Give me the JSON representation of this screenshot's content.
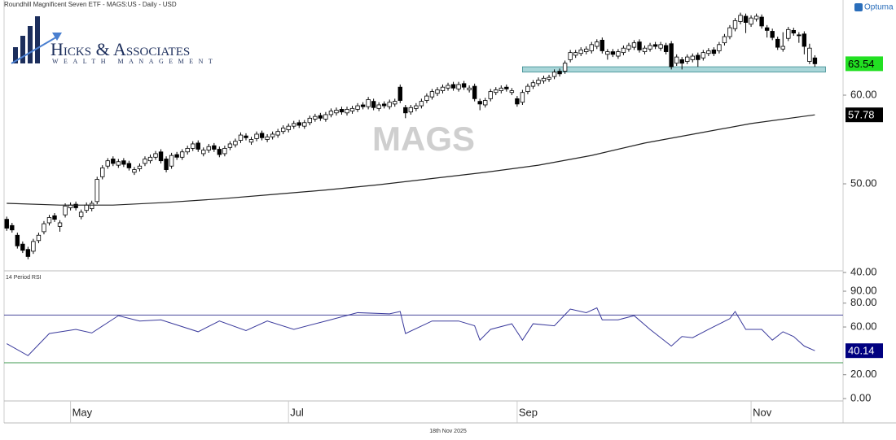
{
  "brand": "Optuma",
  "footer": "18th Nov 2025",
  "logo": {
    "name": "Hicks & Associates",
    "tagline": "WEALTH MANAGEMENT"
  },
  "chart_data": [
    {
      "type": "candlestick",
      "title": "Roundhill Magnificent Seven ETF - MAGS:US - Daily - USD",
      "watermark": "MAGS",
      "xlim": [
        -0.5,
        157.3
      ],
      "ylim": [
        40.28,
        70.73
      ],
      "yticks": [
        {
          "value": 40,
          "label": "40.00"
        },
        {
          "value": 50,
          "label": "50.00"
        },
        {
          "value": 60,
          "label": "60.00"
        }
      ],
      "up_color": "#ffffff",
      "down_color": "#000000",
      "close_label_color": "#22e022",
      "open": [
        46.0,
        45.3,
        44.2,
        43.2,
        42.6,
        42.4,
        43.6,
        44.6,
        45.6,
        46.4,
        45.2,
        46.5,
        47.3,
        47.7,
        46.3,
        47.0,
        47.2,
        48.0,
        50.8,
        52.0,
        52.8,
        52.1,
        52.6,
        52.3,
        51.3,
        51.7,
        52.3,
        52.6,
        53.0,
        53.6,
        52.8,
        52.0,
        53.3,
        53.0,
        53.6,
        54.0,
        54.6,
        53.4,
        53.8,
        54.3,
        53.9,
        53.4,
        54.1,
        54.4,
        54.9,
        55.4,
        54.7,
        55.1,
        55.7,
        55.0,
        55.3,
        55.5,
        55.9,
        56.1,
        56.5,
        56.9,
        56.5,
        56.9,
        57.3,
        57.7,
        57.3,
        57.8,
        58.0,
        58.4,
        58.0,
        58.2,
        58.4,
        58.9,
        58.7,
        59.3,
        58.5,
        59.0,
        58.7,
        59.0,
        60.9,
        58.6,
        58.1,
        58.5,
        58.8,
        59.4,
        59.8,
        60.2,
        60.5,
        60.8,
        61.2,
        60.7,
        61.3,
        60.6,
        61.0,
        59.3,
        58.9,
        59.6,
        60.3,
        60.5,
        60.9,
        60.3,
        59.6,
        59.2,
        60.4,
        61.0,
        61.3,
        61.6,
        61.8,
        62.1,
        62.7,
        62.7,
        64.0,
        64.5,
        64.7,
        64.9,
        65.0,
        65.5,
        66.2,
        64.6,
        64.9,
        64.4,
        64.8,
        65.2,
        65.4,
        66.0,
        64.9,
        65.2,
        65.7,
        65.3,
        65.6,
        65.8,
        63.6,
        64.0,
        63.8,
        64.0,
        64.5,
        64.2,
        64.7,
        65.1,
        65.0,
        65.9,
        66.6,
        67.5,
        68.3,
        68.9,
        68.0,
        68.6,
        68.8,
        67.6,
        67.2,
        66.3,
        65.2,
        66.4,
        67.3,
        66.8,
        66.9,
        63.8,
        64.2
      ],
      "high": [
        46.3,
        45.6,
        44.5,
        43.5,
        42.9,
        43.8,
        44.5,
        45.8,
        46.5,
        46.7,
        45.9,
        47.8,
        47.9,
        48.0,
        47.1,
        47.9,
        48.1,
        50.8,
        52.1,
        52.9,
        53.1,
        52.8,
        52.9,
        52.6,
        51.9,
        52.3,
        53.1,
        53.3,
        53.7,
        53.9,
        53.1,
        53.5,
        53.6,
        53.9,
        54.3,
        54.8,
        54.9,
        54.1,
        54.5,
        54.6,
        54.2,
        54.3,
        54.8,
        55.1,
        55.8,
        55.7,
        55.3,
        55.9,
        56.0,
        55.6,
        55.9,
        56.2,
        56.6,
        56.8,
        57.1,
        57.2,
        57.2,
        57.7,
        57.9,
        58.0,
        58.1,
        58.5,
        58.6,
        58.7,
        58.7,
        58.8,
        59.1,
        59.2,
        59.8,
        59.6,
        59.2,
        59.3,
        59.5,
        59.6,
        61.2,
        58.9,
        58.9,
        59.1,
        59.6,
        60.2,
        60.7,
        60.9,
        61.2,
        61.4,
        61.5,
        61.5,
        61.6,
        61.1,
        61.3,
        59.6,
        59.7,
        60.7,
        60.9,
        61.1,
        61.2,
        60.8,
        59.9,
        60.6,
        61.3,
        61.7,
        62.0,
        62.2,
        62.3,
        62.9,
        63.0,
        63.9,
        65.1,
        65.1,
        65.4,
        65.5,
        66.0,
        66.3,
        66.5,
        65.2,
        65.2,
        65.2,
        65.6,
        65.9,
        66.2,
        66.3,
        65.6,
        65.9,
        66.0,
        66.0,
        65.9,
        66.1,
        64.6,
        64.3,
        64.6,
        64.7,
        64.8,
        65.1,
        65.3,
        65.4,
        66.0,
        66.9,
        67.9,
        68.7,
        69.3,
        69.2,
        69.0,
        69.2,
        69.1,
        67.9,
        67.5,
        66.6,
        67.1,
        67.7,
        67.6,
        67.1,
        67.2,
        65.8,
        64.5
      ],
      "low": [
        44.7,
        44.5,
        42.7,
        42.2,
        41.5,
        42.1,
        43.3,
        44.3,
        45.3,
        45.7,
        44.6,
        46.2,
        47.0,
        47.0,
        46.0,
        46.7,
        46.9,
        47.7,
        50.5,
        51.7,
        52.0,
        51.8,
        51.9,
        51.5,
        51.0,
        51.4,
        52.0,
        52.3,
        52.7,
        52.3,
        51.3,
        51.7,
        52.7,
        52.7,
        53.3,
        53.7,
        53.6,
        53.1,
        53.5,
        53.6,
        53.0,
        53.1,
        53.8,
        54.1,
        54.6,
        54.9,
        54.4,
        54.8,
        54.9,
        54.7,
        55.0,
        55.2,
        55.6,
        55.8,
        56.2,
        56.3,
        56.2,
        56.6,
        57.0,
        57.1,
        57.0,
        57.5,
        57.7,
        57.8,
        57.7,
        57.9,
        58.1,
        58.4,
        58.4,
        58.3,
        58.2,
        58.5,
        58.4,
        58.7,
        59.1,
        57.4,
        57.8,
        58.2,
        58.5,
        59.1,
        59.5,
        59.9,
        60.2,
        60.5,
        60.5,
        60.4,
        60.6,
        60.3,
        59.3,
        58.3,
        58.6,
        59.3,
        60.0,
        60.2,
        60.4,
        60.0,
        58.7,
        58.9,
        60.1,
        60.7,
        61.0,
        61.3,
        61.5,
        61.8,
        62.1,
        62.4,
        63.7,
        64.2,
        64.4,
        64.6,
        64.7,
        65.2,
        64.7,
        64.0,
        64.3,
        64.1,
        64.5,
        64.9,
        65.1,
        64.8,
        64.6,
        64.9,
        65.2,
        65.0,
        64.6,
        62.9,
        63.3,
        62.9,
        63.5,
        63.7,
        63.2,
        63.9,
        64.4,
        64.4,
        64.7,
        65.6,
        66.3,
        67.2,
        68.0,
        67.0,
        67.7,
        68.3,
        67.5,
        66.5,
        66.2,
        65.1,
        64.9,
        66.1,
        66.7,
        65.9,
        64.6,
        63.5,
        63.2
      ],
      "close": [
        45.0,
        44.8,
        43.0,
        42.5,
        41.8,
        43.5,
        44.2,
        45.5,
        46.2,
        46.0,
        45.6,
        47.5,
        47.6,
        47.3,
        46.8,
        47.6,
        47.8,
        50.5,
        51.8,
        52.6,
        52.3,
        52.5,
        52.2,
        51.8,
        51.6,
        52.0,
        52.8,
        53.0,
        53.4,
        52.6,
        51.6,
        53.2,
        53.0,
        53.6,
        54.0,
        54.5,
        53.9,
        53.8,
        54.2,
        53.9,
        53.3,
        54.0,
        54.5,
        54.8,
        55.5,
        55.2,
        55.0,
        55.6,
        55.2,
        55.3,
        55.6,
        55.9,
        56.3,
        56.5,
        56.8,
        56.6,
        56.9,
        57.4,
        57.6,
        57.4,
        57.8,
        58.2,
        58.3,
        58.1,
        58.4,
        58.5,
        58.8,
        58.7,
        59.5,
        58.6,
        58.9,
        58.8,
        59.2,
        59.3,
        59.4,
        58.0,
        58.6,
        58.8,
        59.3,
        59.9,
        60.4,
        60.6,
        60.9,
        61.1,
        60.8,
        61.2,
        60.9,
        60.8,
        59.6,
        59.0,
        59.4,
        60.4,
        60.6,
        60.8,
        60.7,
        60.5,
        59.0,
        60.3,
        61.0,
        61.4,
        61.7,
        61.9,
        62.0,
        62.6,
        62.4,
        63.6,
        64.8,
        64.8,
        65.1,
        65.2,
        65.7,
        66.0,
        65.0,
        64.9,
        64.6,
        64.9,
        65.3,
        65.6,
        65.9,
        65.1,
        65.3,
        65.6,
        65.5,
        65.7,
        64.9,
        63.2,
        64.3,
        63.6,
        64.3,
        64.4,
        64.0,
        64.8,
        65.0,
        64.7,
        65.7,
        66.6,
        67.6,
        68.4,
        69.0,
        68.2,
        68.7,
        68.9,
        67.8,
        67.3,
        66.5,
        65.4,
        65.5,
        67.4,
        67.0,
        66.7,
        65.5,
        65.3,
        63.54
      ],
      "moving_average": {
        "color": "#222222",
        "x": [
          0,
          10,
          20,
          30,
          40,
          50,
          60,
          70,
          80,
          90,
          100,
          110,
          120,
          130,
          140,
          152
        ],
        "values": [
          47.8,
          47.6,
          47.6,
          47.9,
          48.3,
          48.8,
          49.3,
          49.9,
          50.6,
          51.3,
          52.1,
          53.2,
          54.6,
          55.7,
          56.8,
          57.78
        ]
      },
      "zone": {
        "from": 62.6,
        "to": 63.2,
        "start": 97,
        "end": 154,
        "color": "#a9d6d9"
      }
    },
    {
      "type": "line",
      "title": "14 Period RSI",
      "color": "#3a3a9c",
      "label_color": "#000080",
      "xlim": [
        -0.5,
        157.3
      ],
      "ylim": [
        -2,
        105.7
      ],
      "yticks": [
        {
          "value": 0,
          "label": "0.00"
        },
        {
          "value": 20,
          "label": "20.00"
        },
        {
          "value": 60,
          "label": "60.00"
        },
        {
          "value": 80,
          "label": "80.00"
        },
        {
          "value": 90,
          "label": "90.00"
        }
      ],
      "levels": [
        {
          "value": 70,
          "color": "#4a4a9c"
        },
        {
          "value": 30,
          "color": "#3f9a4f"
        }
      ],
      "xticks": [
        {
          "value": 12,
          "label": "May"
        },
        {
          "value": 53,
          "label": "Jul"
        },
        {
          "value": 96,
          "label": "Sep"
        },
        {
          "value": 140,
          "label": "Nov"
        }
      ],
      "x": [
        0,
        4,
        8,
        13,
        16,
        21,
        25,
        29,
        36,
        40,
        45,
        49,
        54,
        60,
        66,
        72,
        74,
        75,
        80,
        85,
        88,
        89,
        91,
        95,
        97,
        99,
        103,
        106,
        109,
        111,
        112,
        115,
        118,
        121,
        125,
        127,
        129,
        132,
        136,
        137,
        139,
        142,
        144,
        146,
        148,
        150,
        152
      ],
      "values": [
        46,
        36,
        54.5,
        58,
        55,
        69.5,
        65,
        66,
        56,
        65,
        57,
        65,
        58,
        65,
        72,
        71,
        73,
        54.5,
        65,
        65,
        61,
        49,
        58,
        62.7,
        49,
        62.7,
        61,
        75,
        72,
        76,
        66,
        66,
        69.5,
        58,
        44,
        52,
        51,
        58,
        67,
        73,
        58,
        58,
        49,
        56,
        52,
        44,
        40.14
      ]
    }
  ]
}
